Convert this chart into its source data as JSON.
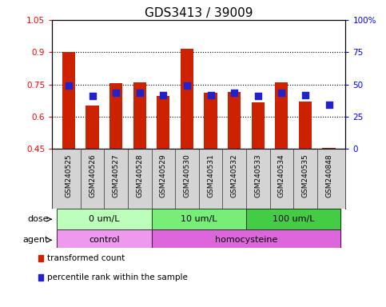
{
  "title": "GDS3413 / 39009",
  "samples": [
    "GSM240525",
    "GSM240526",
    "GSM240527",
    "GSM240528",
    "GSM240529",
    "GSM240530",
    "GSM240531",
    "GSM240532",
    "GSM240533",
    "GSM240534",
    "GSM240535",
    "GSM240848"
  ],
  "transformed_count": [
    0.9,
    0.65,
    0.755,
    0.76,
    0.695,
    0.915,
    0.71,
    0.715,
    0.665,
    0.76,
    0.67,
    0.455
  ],
  "percentile_rank": [
    0.745,
    0.695,
    0.71,
    0.71,
    0.7,
    0.745,
    0.7,
    0.71,
    0.695,
    0.71,
    0.7,
    0.655
  ],
  "bar_color": "#cc2200",
  "dot_color": "#2222cc",
  "ylim_left": [
    0.45,
    1.05
  ],
  "ylim_right": [
    0,
    100
  ],
  "yticks_left": [
    0.45,
    0.6,
    0.75,
    0.9,
    1.05
  ],
  "ytick_labels_left": [
    "0.45",
    "0.6",
    "0.75",
    "0.9",
    "1.05"
  ],
  "yticks_right": [
    0,
    25,
    50,
    75,
    100
  ],
  "ytick_labels_right": [
    "0",
    "25",
    "50",
    "75",
    "100%"
  ],
  "hlines": [
    0.6,
    0.75,
    0.9
  ],
  "dose_groups": [
    {
      "label": "0 um/L",
      "start": 0,
      "end": 4,
      "color": "#bbffbb"
    },
    {
      "label": "10 um/L",
      "start": 4,
      "end": 8,
      "color": "#77ee77"
    },
    {
      "label": "100 um/L",
      "start": 8,
      "end": 12,
      "color": "#44cc44"
    }
  ],
  "agent_groups": [
    {
      "label": "control",
      "start": 0,
      "end": 4,
      "color": "#ee99ee"
    },
    {
      "label": "homocysteine",
      "start": 4,
      "end": 12,
      "color": "#dd66dd"
    }
  ],
  "legend_items": [
    {
      "color": "#cc2200",
      "label": "transformed count"
    },
    {
      "color": "#2222cc",
      "label": "percentile rank within the sample"
    }
  ],
  "bar_width": 0.55,
  "dot_size": 35,
  "background_color": "#ffffff",
  "plot_bg": "#ffffff",
  "sample_band_color": "#d4d4d4",
  "grid_color": "#000000",
  "title_fontsize": 11,
  "tick_fontsize": 7.5,
  "sample_fontsize": 6.5,
  "legend_fontsize": 7.5,
  "row_label_fontsize": 8
}
